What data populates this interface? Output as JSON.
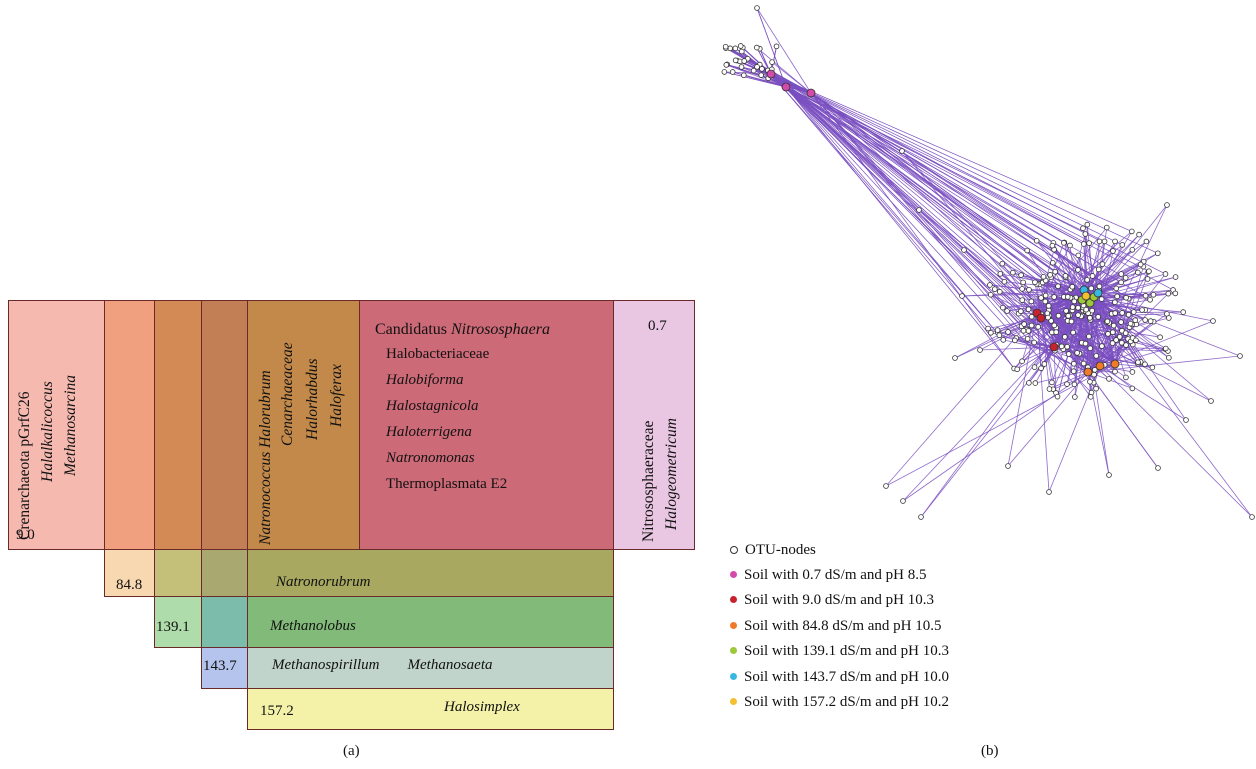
{
  "panel_a": {
    "caption": "(a)",
    "top_blocks": [
      {
        "lines": [
          "Crenarchaeota pGrfC26",
          "Halalkalicoccus",
          "Methanosarcina"
        ],
        "italic": [
          false,
          true,
          true
        ],
        "value": "9.0",
        "color": "#f5b9b0"
      },
      {
        "color": "#f0a07e"
      },
      {
        "color": "#d48a55"
      },
      {
        "color": "#c27f56"
      },
      {
        "lines": [
          "Natronococcus Halorubrum",
          "Cenarchaeaceae",
          "Halorhabdus",
          "Haloferax"
        ],
        "italic": [
          true,
          true,
          true,
          true
        ],
        "color": "#c2894a"
      },
      {
        "lines": [
          "Candidatus Nitrososphaera",
          "Halobacteriaceae",
          "Halobiforma",
          "Halostagnicola",
          "Haloterrigena",
          "Natronomonas",
          "Thermoplasmata E2"
        ],
        "color": "#cc6a78"
      },
      {
        "lines": [
          "Nitrososphaeraceae",
          "Halogeometricum"
        ],
        "italic": [
          false,
          true
        ],
        "value": "0.7",
        "color": "#e9c6e2"
      }
    ],
    "rows": [
      {
        "value": "84.8",
        "name": "Natronorubrum",
        "value_color": "#f8d8b0",
        "color": "#a8a860"
      },
      {
        "value": "139.1",
        "name": "Methanolobus",
        "value_color": "#aedcab",
        "color": "#82ba7a"
      },
      {
        "value": "143.7",
        "name": "Methanospirillum Methanosaeta",
        "value_color": "#b4c4ec",
        "color": "#c0d4cc"
      },
      {
        "value": "157.2",
        "name": "Halosimplex",
        "color": "#f4f2a8"
      }
    ]
  },
  "panel_b": {
    "caption": "(b)",
    "legend": [
      {
        "label": "OTU-nodes",
        "color": "#ffffff"
      },
      {
        "label": "Soil with 0.7 dS/m and pH 8.5",
        "color": "#d44aa8"
      },
      {
        "label": "Soil with 9.0 dS/m and pH 10.3",
        "color": "#c8222e"
      },
      {
        "label": "Soil with 84.8 dS/m and pH 10.5",
        "color": "#f07a2a"
      },
      {
        "label": "Soil with 139.1 dS/m and pH 10.3",
        "color": "#9cc83a"
      },
      {
        "label": "Soil with 143.7 dS/m and pH 10.0",
        "color": "#38b8e0"
      },
      {
        "label": "Soil with 157.2 dS/m and pH 10.2",
        "color": "#f4c030"
      }
    ],
    "edge_color": "#7a4fc0"
  }
}
